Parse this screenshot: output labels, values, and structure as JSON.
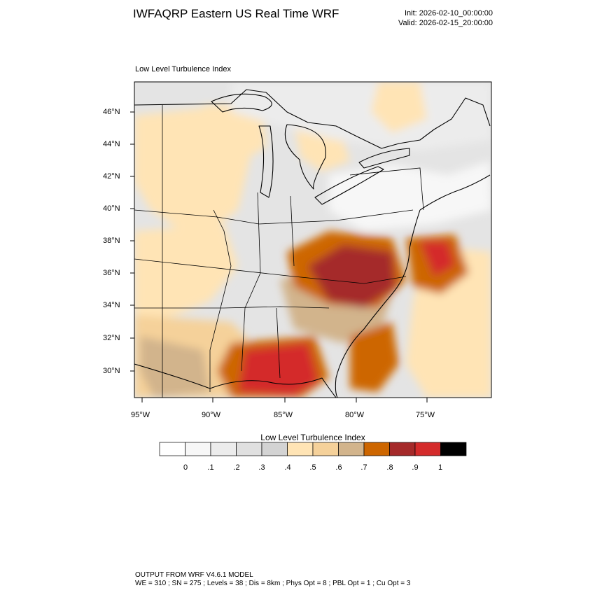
{
  "header": {
    "title": "IWFAQRP Eastern US Real Time WRF",
    "init": "Init: 2026-02-10_00:00:00",
    "valid": "Valid: 2026-02-15_20:00:00"
  },
  "panel": {
    "title": "Low Level Turbulence Index"
  },
  "map": {
    "projection": "lambert-conformal",
    "lat_labels": [
      "46°N",
      "44°N",
      "42°N",
      "40°N",
      "38°N",
      "36°N",
      "34°N",
      "32°N",
      "30°N"
    ],
    "lon_labels": [
      "95°W",
      "90°W",
      "85°W",
      "80°W",
      "75°W"
    ],
    "field_regions": [
      {
        "area": "Virginia-North Carolina piedmont",
        "index": 0.8
      },
      {
        "area": "Chesapeake offshore",
        "index": 0.9
      },
      {
        "area": "Florida panhandle-Alabama",
        "index": 0.9
      },
      {
        "area": "Georgia coast offshore",
        "index": 0.7
      },
      {
        "area": "Great Lakes-Northeast",
        "index": 0.2
      },
      {
        "area": "Upper Midwest",
        "index": 0.5
      }
    ]
  },
  "colorbar": {
    "title": "Low Level Turbulence Index",
    "ticks": [
      "0",
      ".1",
      ".2",
      ".3",
      ".4",
      ".5",
      ".6",
      ".7",
      ".8",
      ".9",
      "1"
    ],
    "colors": [
      "#ffffff",
      "#f7f7f7",
      "#ececec",
      "#e0e0e0",
      "#d3d3d3",
      "#ffe4b5",
      "#f5d19a",
      "#d2b48c",
      "#cd6600",
      "#a52a2a",
      "#d42b2b",
      "#000000"
    ]
  },
  "footer": {
    "line1": "OUTPUT FROM WRF V4.6.1 MODEL",
    "line2": "WE = 310 ; SN = 275 ; Levels = 38 ; Dis = 8km ; Phys Opt = 8 ; PBL Opt = 1 ; Cu Opt = 3"
  }
}
